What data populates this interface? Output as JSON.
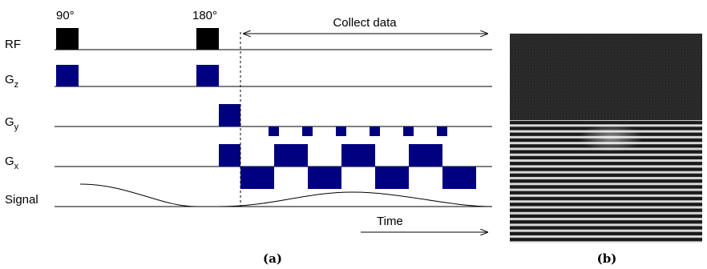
{
  "pulse_labels": [
    "90°",
    "180°"
  ],
  "rows": [
    {
      "label": "RF"
    },
    {
      "label": "G",
      "sub": "z"
    },
    {
      "label": "G",
      "sub": "y"
    },
    {
      "label": "G",
      "sub": "x"
    },
    {
      "label": "Signal"
    }
  ],
  "collect_label": "Collect data",
  "time_label": "Time",
  "captions": [
    "(a)",
    "(b)"
  ]
}
